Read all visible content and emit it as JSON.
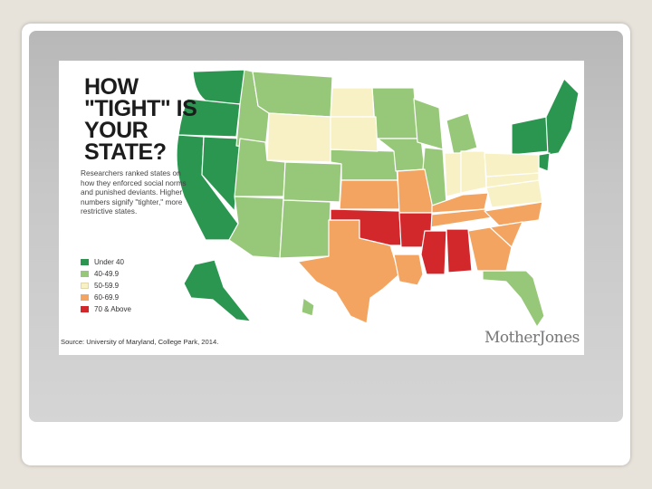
{
  "title": "HOW \"TIGHT\" IS YOUR STATE?",
  "description": "Researchers ranked states on how they enforced social norms and punished deviants. Higher numbers signify \"tighter,\" more restrictive states.",
  "legend": [
    {
      "label": "Under 40",
      "color": "#2a9650"
    },
    {
      "label": "40-49.9",
      "color": "#97c778"
    },
    {
      "label": "50-59.9",
      "color": "#f8f1c6"
    },
    {
      "label": "60-69.9",
      "color": "#f3a460"
    },
    {
      "label": "70 & Above",
      "color": "#d2272b"
    }
  ],
  "source": "Source: University of Maryland, College Park, 2014.",
  "brand": "MotherJones"
}
